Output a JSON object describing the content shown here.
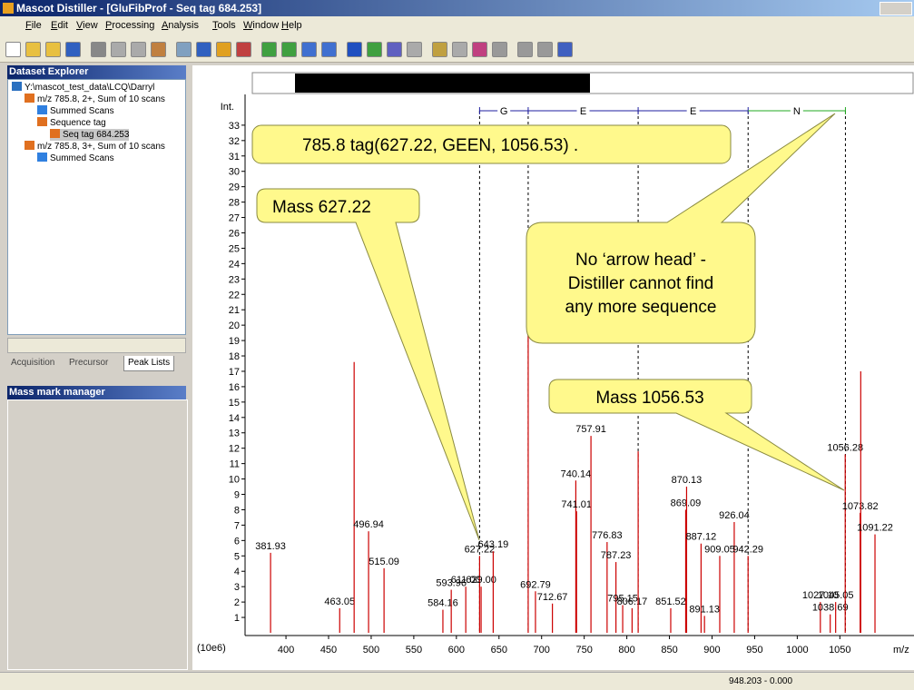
{
  "window": {
    "title": "Mascot Distiller - [GluFibProf - Seq tag 684.253]",
    "menu": [
      "File",
      "Edit",
      "View",
      "Processing",
      "Analysis",
      "Tools",
      "Window",
      "Help"
    ]
  },
  "dataset_explorer": {
    "title": "Dataset Explorer",
    "tree": [
      {
        "label": "Y:\\mascot_test_data\\LCQ\\Darryl",
        "level": 0
      },
      {
        "label": "m/z 785.8, 2+, Sum of 10 scans",
        "level": 1
      },
      {
        "label": "Summed Scans",
        "level": 2
      },
      {
        "label": "Sequence tag",
        "level": 2
      },
      {
        "label": "Seq tag 684.253",
        "level": 3
      },
      {
        "label": "m/z 785.8, 3+, Sum of 10 scans",
        "level": 1
      },
      {
        "label": "Summed Scans",
        "level": 2
      }
    ],
    "tabs": [
      "Acquisition",
      "Precursor",
      "Peak Lists"
    ]
  },
  "mass_mark_manager": {
    "title": "Mass mark manager"
  },
  "spectrum": {
    "y_axis_label": "Int.",
    "y_scale_label": "(10e6)",
    "x_axis_label": "m/z",
    "color": "#cc0000",
    "xlim": [
      352,
      1137
    ],
    "ylim": [
      0,
      35
    ],
    "xticks": [
      400,
      450,
      500,
      550,
      600,
      650,
      700,
      750,
      800,
      850,
      900,
      950,
      1000,
      1050
    ],
    "yticks": [
      1,
      2,
      3,
      4,
      5,
      6,
      7,
      8,
      9,
      10,
      11,
      12,
      13,
      14,
      15,
      16,
      17,
      18,
      19,
      20,
      21,
      22,
      23,
      24,
      25,
      26,
      27,
      28,
      29,
      30,
      31,
      32,
      33
    ],
    "peaks": [
      {
        "mz": 381.93,
        "label": "381.93",
        "intensity": 5.2
      },
      {
        "mz": 463.05,
        "label": "463.05",
        "intensity": 1.6
      },
      {
        "mz": 480,
        "intensity": 17.6
      },
      {
        "mz": 496.94,
        "label": "496.94",
        "intensity": 6.6
      },
      {
        "mz": 515.09,
        "label": "515.09",
        "intensity": 4.2
      },
      {
        "mz": 584.16,
        "label": "584.16",
        "intensity": 1.5
      },
      {
        "mz": 593.96,
        "label": "593.96",
        "intensity": 2.8
      },
      {
        "mz": 611.0,
        "label": "611.00",
        "intensity": 3.0
      },
      {
        "mz": 627.22,
        "label": "627.22",
        "intensity": 5.0
      },
      {
        "mz": 629.0,
        "label": "629.00",
        "intensity": 3.0
      },
      {
        "mz": 643.19,
        "label": "643.19",
        "intensity": 5.3
      },
      {
        "mz": 684.25,
        "intensity": 19.5
      },
      {
        "mz": 692.79,
        "label": "692.79",
        "intensity": 2.7
      },
      {
        "mz": 712.67,
        "label": "712.67",
        "intensity": 1.9
      },
      {
        "mz": 740.14,
        "label": "740.14",
        "intensity": 9.9
      },
      {
        "mz": 741.01,
        "label": "741.01",
        "intensity": 7.9
      },
      {
        "mz": 757.91,
        "label": "757.91",
        "intensity": 12.8
      },
      {
        "mz": 776.83,
        "label": "776.83",
        "intensity": 5.9
      },
      {
        "mz": 787.23,
        "label": "787.23",
        "intensity": 4.6
      },
      {
        "mz": 795.15,
        "label": "795.15",
        "intensity": 1.8
      },
      {
        "mz": 806.17,
        "label": "806.17",
        "intensity": 1.6
      },
      {
        "mz": 813.3,
        "intensity": 11.8
      },
      {
        "mz": 851.52,
        "label": "851.52",
        "intensity": 1.6
      },
      {
        "mz": 869.09,
        "label": "869.09",
        "intensity": 8.0
      },
      {
        "mz": 870.13,
        "label": "870.13",
        "intensity": 9.5
      },
      {
        "mz": 887.12,
        "label": "887.12",
        "intensity": 5.8
      },
      {
        "mz": 891.13,
        "label": "891.13",
        "intensity": 1.1
      },
      {
        "mz": 909.05,
        "label": "909.05",
        "intensity": 5.0
      },
      {
        "mz": 926.04,
        "label": "926.04",
        "intensity": 7.2
      },
      {
        "mz": 942.29,
        "label": "942.29",
        "intensity": 5.0
      },
      {
        "mz": 1027.1,
        "label": "1027.10",
        "intensity": 2.0
      },
      {
        "mz": 1038.69,
        "label": "1038.69",
        "intensity": 1.2
      },
      {
        "mz": 1045.05,
        "label": "1045.05",
        "intensity": 2.0
      },
      {
        "mz": 1056.28,
        "label": "1056.28",
        "intensity": 11.6
      },
      {
        "mz": 1073.82,
        "label": "1073.82",
        "intensity": 7.8
      },
      {
        "mz": 1074.5,
        "intensity": 17.0
      },
      {
        "mz": 1091.22,
        "label": "1091.22",
        "intensity": 6.4
      }
    ],
    "sequence_tag": {
      "boundaries": [
        627.22,
        684.24,
        813.28,
        942.32,
        1056.53
      ],
      "residues": [
        {
          "label": "G",
          "color": "#1f1fa0"
        },
        {
          "label": "E",
          "color": "#1f1fa0"
        },
        {
          "label": "E",
          "color": "#1f1fa0"
        },
        {
          "label": "N",
          "color": "#22aa22"
        }
      ]
    }
  },
  "callouts": {
    "tag": "785.8 tag(627.22, GEEN, 1056.53)     .",
    "mass_start": "Mass 627.22",
    "no_arrow": [
      "No ‘arrow head’ -",
      "Distiller cannot find",
      "any more sequence"
    ],
    "mass_end": "Mass 1056.53"
  },
  "status_bar": "948.203 - 0.000"
}
